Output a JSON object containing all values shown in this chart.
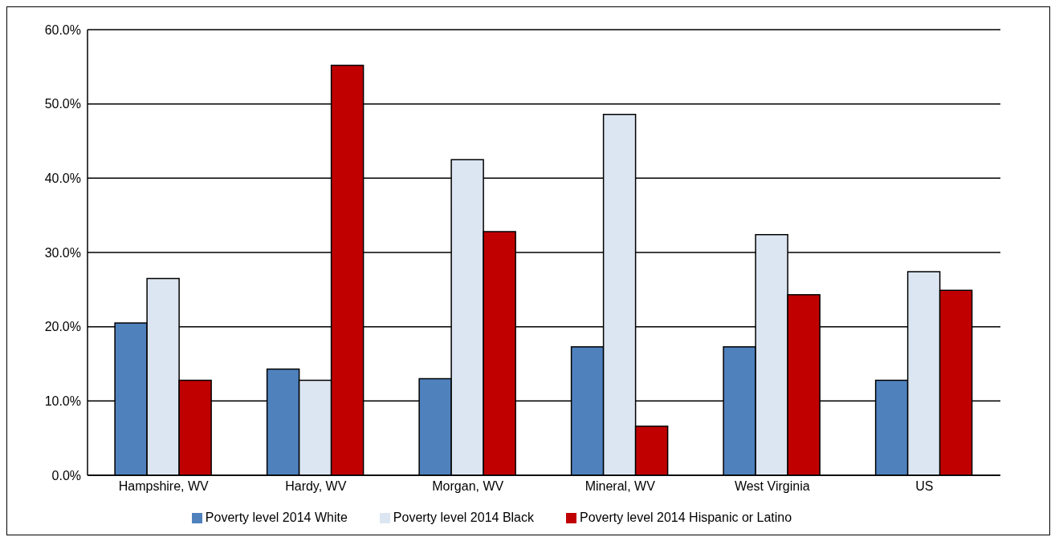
{
  "chart_data": {
    "type": "bar",
    "categories": [
      "Hampshire, WV",
      "Hardy, WV",
      "Morgan, WV",
      "Mineral, WV",
      "West Virginia",
      "US"
    ],
    "series": [
      {
        "name": "Poverty level 2014 White",
        "color": "#4f81bd",
        "values": [
          20.5,
          14.3,
          13.0,
          17.3,
          17.3,
          12.8
        ]
      },
      {
        "name": "Poverty level 2014 Black",
        "color": "#dce6f2",
        "values": [
          26.5,
          12.8,
          42.5,
          48.6,
          32.4,
          27.4
        ]
      },
      {
        "name": "Poverty level 2014 Hispanic or Latino",
        "color": "#c00000",
        "values": [
          12.8,
          55.2,
          32.8,
          6.6,
          24.3,
          24.9
        ]
      }
    ],
    "ylim": [
      0,
      60
    ],
    "yticks": [
      {
        "value": 0,
        "label": "0.0%"
      },
      {
        "value": 10,
        "label": "10.0%"
      },
      {
        "value": 20,
        "label": "20.0%"
      },
      {
        "value": 30,
        "label": "30.0%"
      },
      {
        "value": 40,
        "label": "40.0%"
      },
      {
        "value": 50,
        "label": "50.0%"
      },
      {
        "value": 60,
        "label": "60.0%"
      }
    ],
    "grid": "y",
    "legend": "bottom"
  }
}
